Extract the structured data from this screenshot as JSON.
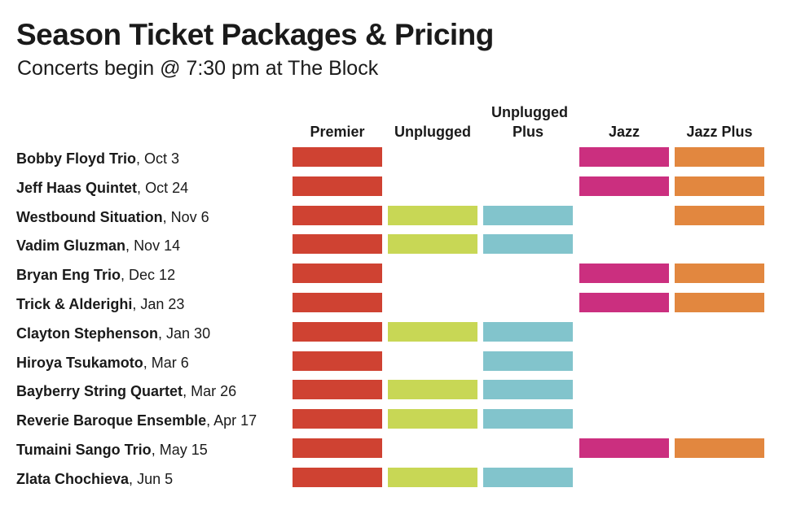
{
  "title": "Season Ticket Packages & Pricing",
  "subtitle": "Concerts begin @ 7:30 pm at The Block",
  "colors": {
    "Premier": "#cf4232",
    "Unplugged": "#c8d755",
    "Unplugged Plus": "#82c4cc",
    "Jazz": "#cb2f7f",
    "Jazz Plus": "#e2873f"
  },
  "chart_data": {
    "type": "table",
    "title": "Season Ticket Packages & Pricing",
    "subtitle": "Concerts begin @ 7:30 pm at The Block",
    "columns": [
      {
        "key": "premier",
        "label": "Premier"
      },
      {
        "key": "unplugged",
        "label": "Unplugged"
      },
      {
        "key": "unplugged_plus",
        "label": "Unplugged Plus"
      },
      {
        "key": "jazz",
        "label": "Jazz"
      },
      {
        "key": "jazz_plus",
        "label": "Jazz Plus"
      }
    ],
    "rows": [
      {
        "name": "Bobby Floyd Trio",
        "date": "Oct 3",
        "included": [
          1,
          0,
          0,
          1,
          1
        ]
      },
      {
        "name": "Jeff Haas Quintet",
        "date": "Oct 24",
        "included": [
          1,
          0,
          0,
          1,
          1
        ]
      },
      {
        "name": "Westbound Situation",
        "date": "Nov 6",
        "included": [
          1,
          1,
          1,
          0,
          1
        ]
      },
      {
        "name": "Vadim Gluzman",
        "date": "Nov 14",
        "included": [
          1,
          1,
          1,
          0,
          0
        ]
      },
      {
        "name": "Bryan Eng Trio",
        "date": "Dec 12",
        "included": [
          1,
          0,
          0,
          1,
          1
        ]
      },
      {
        "name": "Trick & Alderighi",
        "date": "Jan 23",
        "included": [
          1,
          0,
          0,
          1,
          1
        ]
      },
      {
        "name": "Clayton Stephenson",
        "date": "Jan 30",
        "included": [
          1,
          1,
          1,
          0,
          0
        ]
      },
      {
        "name": "Hiroya Tsukamoto",
        "date": "Mar 6",
        "included": [
          1,
          0,
          1,
          0,
          0
        ]
      },
      {
        "name": "Bayberry String Quartet",
        "date": "Mar 26",
        "included": [
          1,
          1,
          1,
          0,
          0
        ]
      },
      {
        "name": "Reverie Baroque Ensemble",
        "date": "Apr 17",
        "included": [
          1,
          1,
          1,
          0,
          0
        ]
      },
      {
        "name": "Tumaini Sango Trio",
        "date": "May 15",
        "included": [
          1,
          0,
          0,
          1,
          1
        ]
      },
      {
        "name": "Zlata Chochieva",
        "date": "Jun 5",
        "included": [
          1,
          1,
          1,
          0,
          0
        ]
      }
    ]
  }
}
